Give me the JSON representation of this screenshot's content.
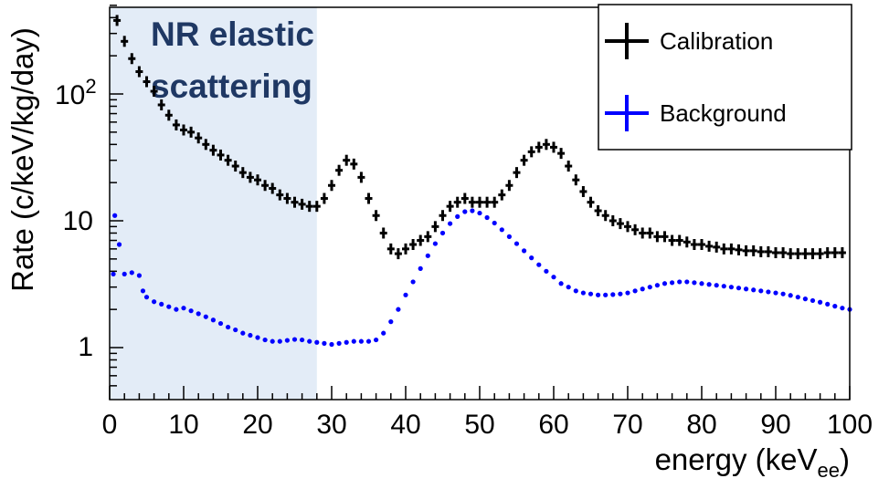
{
  "chart_data": {
    "type": "scatter",
    "xlabel": "energy (keV",
    "xlabel_sub": "ee",
    "xlabel_close": ")",
    "ylabel": "Rate (c/keV/kg/day)",
    "xlim": [
      0,
      100
    ],
    "ylim": [
      0.45,
      500
    ],
    "yscale": "log",
    "xticks": [
      0,
      10,
      20,
      30,
      40,
      50,
      60,
      70,
      80,
      90,
      100
    ],
    "xtick_labels": [
      "0",
      "10",
      "20",
      "30",
      "40",
      "50",
      "60",
      "70",
      "80",
      "90",
      "100"
    ],
    "ytick_labels": {
      "one": "1",
      "ten": "10",
      "hundred_base": "10",
      "hundred_exp": "2"
    },
    "shaded_region": {
      "x": [
        0,
        28
      ],
      "label_line1": "NR elastic",
      "label_line2": "scattering",
      "color": "#e3ecf7"
    },
    "legend": {
      "position": "top-right"
    },
    "series": [
      {
        "name": "Calibration",
        "color": "#000000",
        "marker": "cross",
        "points": [
          [
            1,
            380
          ],
          [
            2,
            260
          ],
          [
            3,
            190
          ],
          [
            4,
            150
          ],
          [
            5,
            125
          ],
          [
            6,
            105
          ],
          [
            7,
            82
          ],
          [
            8,
            68
          ],
          [
            9,
            57
          ],
          [
            10,
            52
          ],
          [
            11,
            50
          ],
          [
            12,
            45
          ],
          [
            13,
            40
          ],
          [
            14,
            36
          ],
          [
            15,
            33
          ],
          [
            16,
            30
          ],
          [
            17,
            27
          ],
          [
            18,
            24
          ],
          [
            19,
            22
          ],
          [
            20,
            21
          ],
          [
            21,
            19
          ],
          [
            22,
            18
          ],
          [
            23,
            16
          ],
          [
            24,
            15
          ],
          [
            25,
            14
          ],
          [
            26,
            13.5
          ],
          [
            27,
            13
          ],
          [
            28,
            13
          ],
          [
            29,
            15
          ],
          [
            30,
            19
          ],
          [
            31,
            25
          ],
          [
            32,
            30
          ],
          [
            33,
            28
          ],
          [
            34,
            22
          ],
          [
            35,
            15
          ],
          [
            36,
            11
          ],
          [
            37,
            8
          ],
          [
            38,
            6
          ],
          [
            39,
            5.5
          ],
          [
            40,
            6
          ],
          [
            41,
            6.5
          ],
          [
            42,
            7
          ],
          [
            43,
            7.5
          ],
          [
            44,
            9
          ],
          [
            45,
            11
          ],
          [
            46,
            13
          ],
          [
            47,
            14
          ],
          [
            48,
            15
          ],
          [
            49,
            14
          ],
          [
            50,
            14
          ],
          [
            51,
            14
          ],
          [
            52,
            14
          ],
          [
            53,
            16
          ],
          [
            54,
            19
          ],
          [
            55,
            24
          ],
          [
            56,
            30
          ],
          [
            57,
            35
          ],
          [
            58,
            38
          ],
          [
            59,
            40
          ],
          [
            60,
            38
          ],
          [
            61,
            34
          ],
          [
            62,
            27
          ],
          [
            63,
            21
          ],
          [
            64,
            17
          ],
          [
            65,
            14
          ],
          [
            66,
            12
          ],
          [
            67,
            11
          ],
          [
            68,
            10
          ],
          [
            69,
            9.5
          ],
          [
            70,
            9
          ],
          [
            71,
            8.5
          ],
          [
            72,
            8
          ],
          [
            73,
            8
          ],
          [
            74,
            7.5
          ],
          [
            75,
            7.5
          ],
          [
            76,
            7
          ],
          [
            77,
            7
          ],
          [
            78,
            6.8
          ],
          [
            79,
            6.5
          ],
          [
            80,
            6.5
          ],
          [
            81,
            6.3
          ],
          [
            82,
            6.2
          ],
          [
            83,
            6
          ],
          [
            84,
            6
          ],
          [
            85,
            5.9
          ],
          [
            86,
            5.8
          ],
          [
            87,
            5.8
          ],
          [
            88,
            5.7
          ],
          [
            89,
            5.7
          ],
          [
            90,
            5.6
          ],
          [
            91,
            5.6
          ],
          [
            92,
            5.5
          ],
          [
            93,
            5.5
          ],
          [
            94,
            5.5
          ],
          [
            95,
            5.5
          ],
          [
            96,
            5.5
          ],
          [
            97,
            5.6
          ],
          [
            98,
            5.6
          ],
          [
            99,
            5.6
          ]
        ]
      },
      {
        "name": "Background",
        "color": "#0000ff",
        "marker": "dot",
        "points": [
          [
            0.5,
            3.8
          ],
          [
            0.7,
            11
          ],
          [
            1.3,
            6.5
          ],
          [
            2,
            3.8
          ],
          [
            3,
            3.9
          ],
          [
            4,
            3.7
          ],
          [
            4.5,
            2.8
          ],
          [
            5,
            2.5
          ],
          [
            6,
            2.3
          ],
          [
            7,
            2.2
          ],
          [
            8,
            2.1
          ],
          [
            9,
            2.0
          ],
          [
            10,
            2.05
          ],
          [
            11,
            1.95
          ],
          [
            12,
            1.85
          ],
          [
            13,
            1.75
          ],
          [
            14,
            1.65
          ],
          [
            15,
            1.55
          ],
          [
            16,
            1.45
          ],
          [
            17,
            1.38
          ],
          [
            18,
            1.3
          ],
          [
            19,
            1.25
          ],
          [
            20,
            1.2
          ],
          [
            21,
            1.15
          ],
          [
            22,
            1.12
          ],
          [
            23,
            1.12
          ],
          [
            24,
            1.14
          ],
          [
            25,
            1.16
          ],
          [
            26,
            1.15
          ],
          [
            27,
            1.12
          ],
          [
            28,
            1.1
          ],
          [
            29,
            1.08
          ],
          [
            30,
            1.06
          ],
          [
            31,
            1.08
          ],
          [
            32,
            1.1
          ],
          [
            33,
            1.12
          ],
          [
            34,
            1.12
          ],
          [
            35,
            1.12
          ],
          [
            36,
            1.15
          ],
          [
            37,
            1.3
          ],
          [
            38,
            1.6
          ],
          [
            39,
            2.0
          ],
          [
            40,
            2.6
          ],
          [
            41,
            3.3
          ],
          [
            42,
            4.2
          ],
          [
            43,
            5.3
          ],
          [
            44,
            6.6
          ],
          [
            45,
            8.0
          ],
          [
            46,
            9.5
          ],
          [
            47,
            10.8
          ],
          [
            48,
            11.8
          ],
          [
            49,
            12.0
          ],
          [
            50,
            11.5
          ],
          [
            51,
            10.6
          ],
          [
            52,
            9.6
          ],
          [
            53,
            8.5
          ],
          [
            54,
            7.5
          ],
          [
            55,
            6.6
          ],
          [
            56,
            5.8
          ],
          [
            57,
            5.1
          ],
          [
            58,
            4.5
          ],
          [
            59,
            4.0
          ],
          [
            60,
            3.6
          ],
          [
            61,
            3.2
          ],
          [
            62,
            3.0
          ],
          [
            63,
            2.8
          ],
          [
            64,
            2.7
          ],
          [
            65,
            2.65
          ],
          [
            66,
            2.6
          ],
          [
            67,
            2.6
          ],
          [
            68,
            2.62
          ],
          [
            69,
            2.65
          ],
          [
            70,
            2.7
          ],
          [
            71,
            2.8
          ],
          [
            72,
            2.9
          ],
          [
            73,
            3.0
          ],
          [
            74,
            3.1
          ],
          [
            75,
            3.2
          ],
          [
            76,
            3.25
          ],
          [
            77,
            3.3
          ],
          [
            78,
            3.3
          ],
          [
            79,
            3.25
          ],
          [
            80,
            3.2
          ],
          [
            81,
            3.15
          ],
          [
            82,
            3.1
          ],
          [
            83,
            3.05
          ],
          [
            84,
            3.0
          ],
          [
            85,
            2.95
          ],
          [
            86,
            2.9
          ],
          [
            87,
            2.85
          ],
          [
            88,
            2.8
          ],
          [
            89,
            2.75
          ],
          [
            90,
            2.7
          ],
          [
            91,
            2.65
          ],
          [
            92,
            2.58
          ],
          [
            93,
            2.5
          ],
          [
            94,
            2.42
          ],
          [
            95,
            2.35
          ],
          [
            96,
            2.28
          ],
          [
            97,
            2.2
          ],
          [
            98,
            2.12
          ],
          [
            99,
            2.05
          ],
          [
            100,
            2.0
          ]
        ]
      }
    ]
  }
}
